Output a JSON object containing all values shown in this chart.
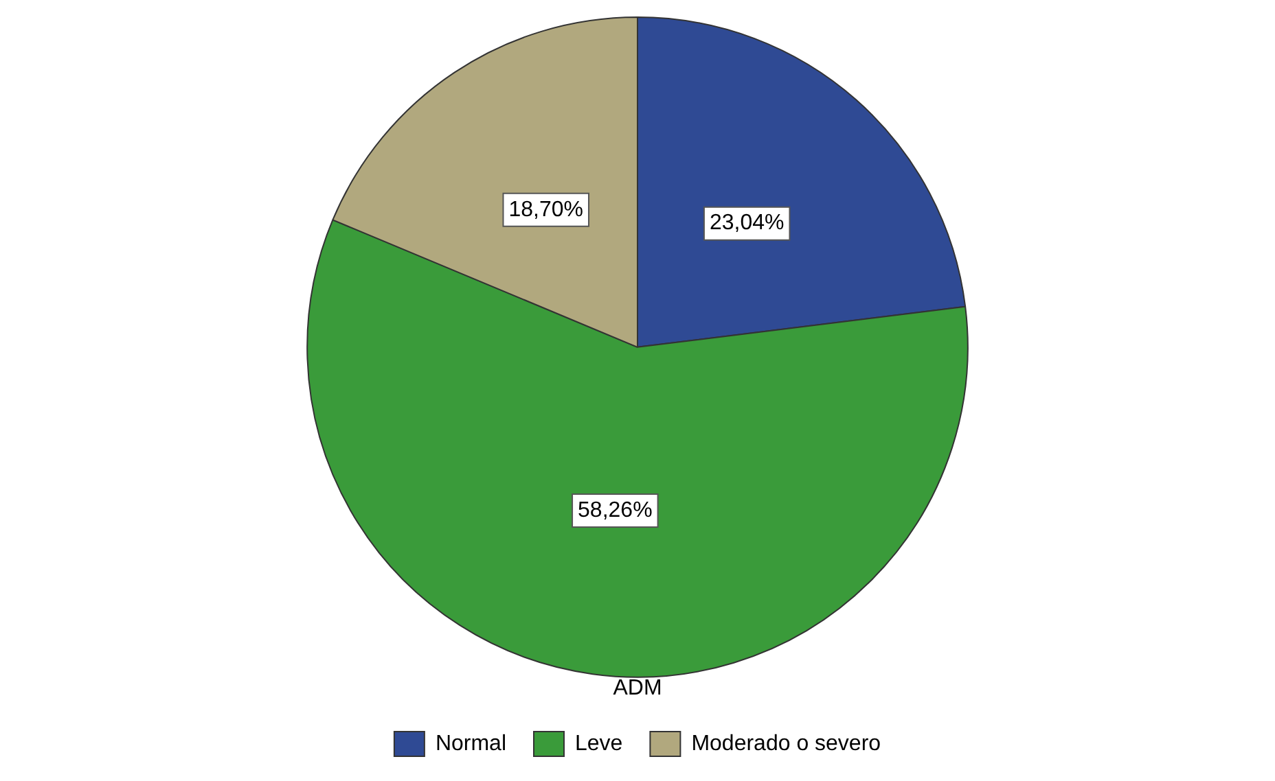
{
  "chart_data": {
    "type": "pie",
    "categories": [
      "Normal",
      "Leve",
      "Moderado o severo"
    ],
    "values": [
      23.04,
      58.26,
      18.7
    ],
    "value_labels": [
      "23,04%",
      "58,26%",
      "18,70%"
    ],
    "colors": [
      "#2f4a94",
      "#3a9b3a",
      "#b1a87e"
    ],
    "legend": "bottom",
    "legend_title": "ADM"
  }
}
